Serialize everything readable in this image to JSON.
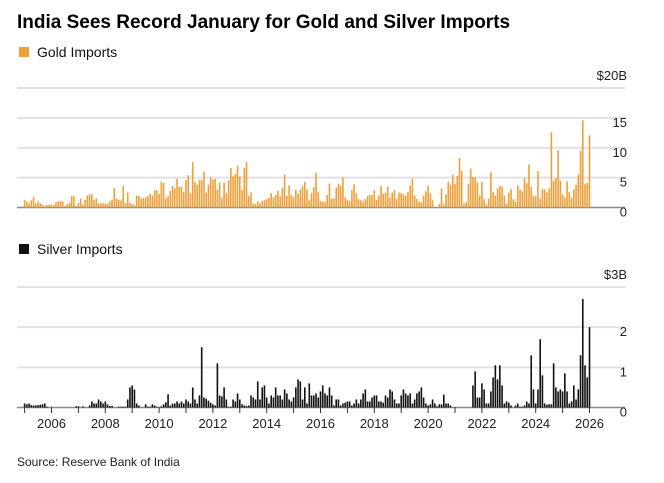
{
  "colors": {
    "gold": "#EDA03A",
    "silver": "#111111",
    "grid": "#E2E2E2",
    "axis": "#8A8A8A"
  },
  "chart_data": [
    {
      "type": "bar",
      "title": "India Sees Record January for Gold and Silver Imports",
      "series_name": "Gold Imports",
      "unit": "$B",
      "start": "2005-01",
      "frequency": "monthly",
      "ylim": [
        0,
        20
      ],
      "yticks": [
        "$20B",
        "15",
        "10",
        "5",
        "0"
      ],
      "ytick_values": [
        20,
        15,
        10,
        5,
        0
      ],
      "values": [
        1.3,
        1.0,
        0.7,
        1.2,
        1.8,
        0.7,
        1.0,
        0.7,
        0.5,
        0.2,
        0.4,
        0.5,
        0.5,
        0.4,
        0.9,
        1.0,
        1.1,
        1.0,
        0.3,
        0.5,
        0.8,
        1.9,
        1.9,
        0.3,
        0.8,
        1.5,
        0.5,
        1.3,
        2.0,
        2.2,
        2.2,
        1.3,
        1.5,
        0.7,
        0.7,
        0.7,
        0.7,
        0.6,
        1.0,
        1.3,
        3.3,
        1.5,
        1.3,
        1.2,
        3.6,
        0.7,
        2.5,
        0.8,
        0.6,
        0.4,
        2.0,
        1.9,
        1.5,
        1.6,
        1.7,
        1.9,
        2.3,
        2.0,
        2.9,
        2.9,
        2.3,
        4.3,
        4.1,
        1.6,
        1.9,
        2.8,
        3.6,
        3.2,
        4.8,
        3.5,
        3.5,
        2.6,
        4.6,
        5.4,
        2.4,
        7.6,
        4.3,
        3.8,
        4.6,
        4.6,
        6.0,
        2.5,
        3.8,
        5.1,
        4.7,
        4.8,
        3.0,
        4.2,
        1.6,
        4.2,
        2.4,
        4.6,
        6.6,
        5.2,
        5.6,
        7.0,
        5.2,
        3.0,
        6.6,
        7.6,
        1.9,
        2.5,
        0.6,
        0.6,
        1.0,
        0.7,
        1.1,
        1.3,
        1.4,
        1.6,
        2.4,
        1.7,
        2.1,
        2.8,
        1.9,
        3.3,
        5.5,
        2.0,
        3.7,
        2.1,
        1.8,
        3.0,
        2.3,
        3.0,
        3.6,
        4.3,
        3.0,
        1.2,
        2.4,
        3.4,
        5.8,
        2.6,
        1.1,
        1.0,
        0.9,
        2.1,
        4.0,
        1.5,
        1.5,
        3.3,
        4.0,
        3.6,
        5.0,
        1.7,
        1.3,
        1.1,
        2.9,
        3.9,
        2.4,
        1.4,
        1.2,
        1.0,
        1.4,
        1.9,
        2.1,
        2.1,
        2.9,
        1.3,
        2.0,
        3.6,
        2.3,
        2.5,
        3.5,
        1.7,
        2.5,
        2.9,
        1.4,
        2.5,
        2.4,
        2.2,
        2.0,
        2.6,
        3.7,
        4.8,
        2.0,
        1.4,
        0.9,
        0.9,
        2.0,
        2.7,
        3.7,
        2.4,
        1.2,
        0.05,
        0.1,
        0.6,
        3.2,
        0.5,
        2.2,
        4.3,
        3.8,
        5.5,
        4.0,
        5.3,
        8.3,
        6.1,
        0.6,
        0.9,
        4.0,
        6.5,
        5.1,
        5.1,
        4.2,
        2.0,
        4.3,
        1.4,
        0.5,
        1.5,
        5.9,
        2.6,
        2.0,
        3.2,
        3.6,
        3.5,
        2.0,
        0.6,
        2.5,
        3.1,
        1.4,
        1.0,
        3.7,
        3.0,
        2.7,
        4.9,
        4.1,
        7.2,
        3.4,
        2.0,
        1.9,
        6.1,
        1.5,
        3.1,
        3.0,
        2.5,
        3.2,
        12.6,
        4.5,
        4.9,
        9.6,
        4.5,
        2.2,
        1.7,
        4.4,
        2.6,
        1.6,
        3.0,
        3.8,
        5.5,
        9.5,
        14.6,
        3.9,
        4.1,
        12.1
      ]
    },
    {
      "type": "bar",
      "series_name": "Silver Imports",
      "unit": "$B",
      "start": "2005-01",
      "frequency": "monthly",
      "ylim": [
        0,
        3
      ],
      "yticks": [
        "$3B",
        "2",
        "1",
        "0"
      ],
      "ytick_values": [
        3,
        2,
        1,
        0
      ],
      "xticks": [
        "2006",
        "2008",
        "2010",
        "2012",
        "2014",
        "2016",
        "2018",
        "2020",
        "2022",
        "2024",
        "2026"
      ],
      "values": [
        0.1,
        0.08,
        0.1,
        0.06,
        0.05,
        0.05,
        0.06,
        0.07,
        0.08,
        0.1,
        0.02,
        0,
        0,
        0,
        0,
        0,
        0,
        0,
        0,
        0,
        0,
        0,
        0,
        0.03,
        0.03,
        0,
        0.03,
        0,
        0,
        0.05,
        0.15,
        0.1,
        0.1,
        0.2,
        0.15,
        0.1,
        0.15,
        0.08,
        0.04,
        0.04,
        0,
        0,
        0.02,
        0.02,
        0.02,
        0.02,
        0.2,
        0.5,
        0.55,
        0.45,
        0.1,
        0.05,
        0,
        0,
        0.08,
        0.02,
        0.02,
        0.08,
        0.05,
        0.02,
        0,
        0.03,
        0.08,
        0.13,
        0.33,
        0.05,
        0.1,
        0.1,
        0.15,
        0.1,
        0.15,
        0.1,
        0.2,
        0.15,
        0.1,
        0.5,
        0.2,
        0.1,
        0.3,
        1.5,
        0.25,
        0.22,
        0.17,
        0.12,
        0.08,
        0.05,
        1.1,
        0.3,
        0.28,
        0.5,
        0.2,
        0.02,
        0.02,
        0.2,
        0.15,
        0.35,
        0.2,
        0.08,
        0.05,
        0.04,
        0.05,
        0.3,
        0.25,
        0.2,
        0.65,
        0.2,
        0.5,
        0.55,
        0.25,
        0.1,
        0.3,
        0.25,
        0.5,
        0.3,
        0.3,
        0.2,
        0.45,
        0.35,
        0.2,
        0.15,
        0.25,
        0.5,
        0.7,
        0.65,
        0.2,
        0.5,
        0.1,
        0.6,
        0.3,
        0.3,
        0.35,
        0.25,
        0.4,
        0.55,
        0.35,
        0.3,
        0.5,
        0.3,
        0.05,
        0.2,
        0.2,
        0.05,
        0.1,
        0.12,
        0.15,
        0.15,
        0.05,
        0.1,
        0.2,
        0.1,
        0.2,
        0.35,
        0.45,
        0.15,
        0.15,
        0.25,
        0.3,
        0.3,
        0.15,
        0.15,
        0.12,
        0.3,
        0.25,
        0.45,
        0.4,
        0.2,
        0.1,
        0.1,
        0.3,
        0.45,
        0.35,
        0.3,
        0.35,
        0.1,
        0.2,
        0.35,
        0.4,
        0.5,
        0.25,
        0.1,
        0.05,
        0.08,
        0.2,
        0.1,
        0.03,
        0.08,
        0.08,
        0.32,
        0.1,
        0.1,
        0.05,
        0,
        0,
        0,
        0,
        0,
        0,
        0,
        0,
        0,
        0.55,
        0.9,
        0.25,
        0.25,
        0.6,
        0.45,
        0.1,
        0.1,
        0.4,
        0.75,
        1.05,
        0.7,
        1.05,
        0.55,
        0.1,
        0.15,
        0.12,
        0.05,
        0,
        0.05,
        0.1,
        0.02,
        0.02,
        0.05,
        0.15,
        0.1,
        1.3,
        0.45,
        0.1,
        0.45,
        1.7,
        0.8,
        0.1,
        0.07,
        0.08,
        0.08,
        1.1,
        0.5,
        0.4,
        0.45,
        0.4,
        0.85,
        0.4,
        0.1,
        0.15,
        0.55,
        0.2,
        0.45,
        1.3,
        2.7,
        1.05,
        0.75,
        2.0
      ]
    }
  ],
  "source": "Source: Reserve Bank of India"
}
